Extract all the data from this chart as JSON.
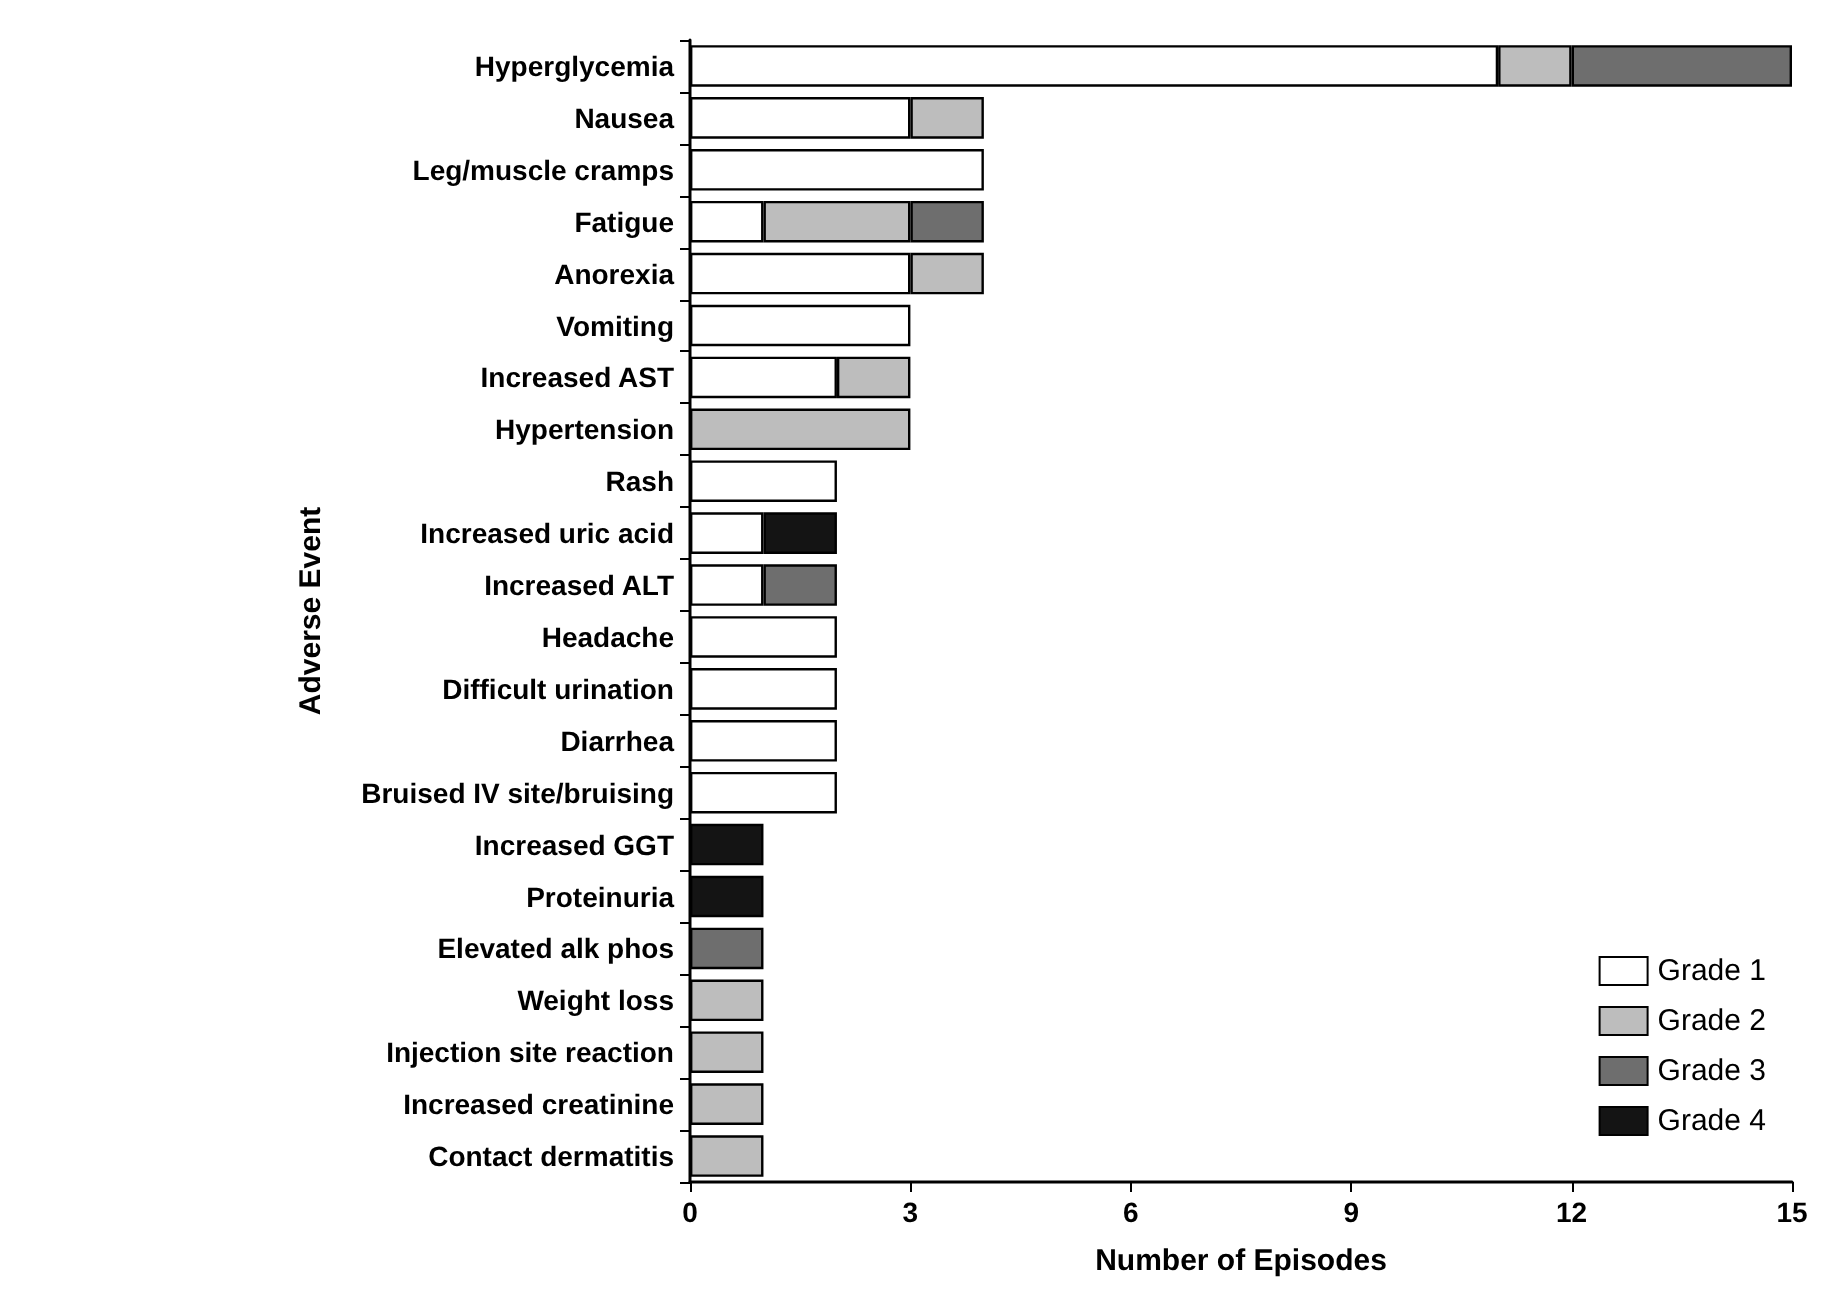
{
  "chart_data": {
    "type": "bar",
    "orientation": "horizontal",
    "stacked": true,
    "xlabel": "Number of Episodes",
    "ylabel": "Adverse Event",
    "categories": [
      "Hyperglycemia",
      "Nausea",
      "Leg/muscle cramps",
      "Fatigue",
      "Anorexia",
      "Vomiting",
      "Increased AST",
      "Hypertension",
      "Rash",
      "Increased uric acid",
      "Increased ALT",
      "Headache",
      "Difficult urination",
      "Diarrhea",
      "Bruised IV site/bruising",
      "Increased GGT",
      "Proteinuria",
      "Elevated alk phos",
      "Weight loss",
      "Injection site reaction",
      "Increased creatinine",
      "Contact dermatitis"
    ],
    "series": [
      {
        "name": "Grade 1",
        "color": "#ffffff",
        "values": [
          11,
          3,
          4,
          1,
          3,
          3,
          2,
          null,
          2,
          1,
          1,
          2,
          2,
          2,
          2,
          null,
          null,
          null,
          null,
          null,
          null,
          null
        ]
      },
      {
        "name": "Grade 2",
        "color": "#bdbdbd",
        "values": [
          1,
          1,
          null,
          2,
          1,
          null,
          1,
          3,
          null,
          null,
          null,
          null,
          null,
          null,
          null,
          null,
          null,
          null,
          1,
          1,
          1,
          1
        ]
      },
      {
        "name": "Grade 3",
        "color": "#6e6e6e",
        "values": [
          3,
          null,
          null,
          1,
          null,
          null,
          null,
          null,
          null,
          null,
          1,
          null,
          null,
          null,
          null,
          null,
          null,
          1,
          null,
          null,
          null,
          null
        ]
      },
      {
        "name": "Grade 4",
        "color": "#141414",
        "values": [
          null,
          null,
          null,
          null,
          null,
          null,
          null,
          null,
          null,
          1,
          null,
          null,
          null,
          null,
          null,
          1,
          1,
          null,
          null,
          null,
          null,
          null
        ]
      }
    ],
    "xlim": [
      0,
      15
    ],
    "xticks": [
      0,
      3,
      6,
      9,
      12,
      15
    ],
    "grid": false,
    "legend": "bottom right"
  }
}
